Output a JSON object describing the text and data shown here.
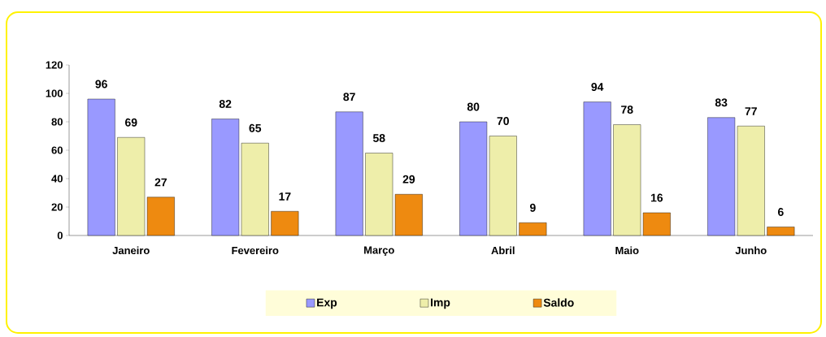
{
  "chart_data": {
    "type": "bar",
    "categories": [
      "Janeiro",
      "Fevereiro",
      "Março",
      "Abril",
      "Maio",
      "Junho"
    ],
    "series": [
      {
        "name": "Exp",
        "color": "#9999ff",
        "values": [
          96,
          82,
          87,
          80,
          94,
          83
        ]
      },
      {
        "name": "Imp",
        "color": "#eeeeaa",
        "values": [
          69,
          65,
          58,
          70,
          78,
          77
        ]
      },
      {
        "name": "Saldo",
        "color": "#ee8a10",
        "values": [
          27,
          17,
          29,
          9,
          16,
          6
        ]
      }
    ],
    "ylim": [
      0,
      120
    ],
    "yticks": [
      0,
      20,
      40,
      60,
      80,
      100,
      120
    ],
    "data_labels": true,
    "grid": false,
    "legend": "bottom"
  }
}
